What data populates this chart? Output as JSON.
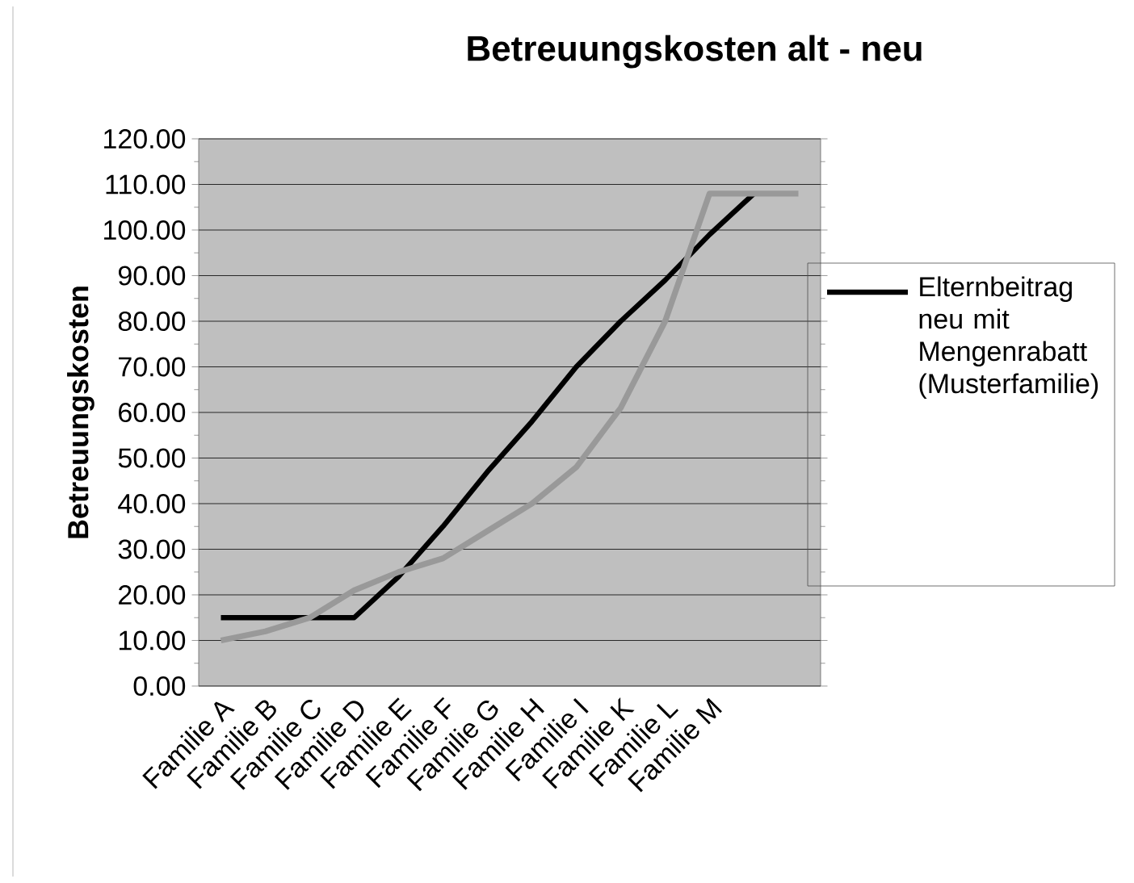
{
  "chart_data": {
    "type": "line",
    "title": "Betreuungskosten alt - neu",
    "ylabel": "Betreuungskosten",
    "categories": [
      "Familie A",
      "Familie B",
      "Familie C",
      "Familie D",
      "Familie E",
      "Familie F",
      "Familie G",
      "Familie H",
      "Familie I",
      "Familie K",
      "Familie L",
      "Familie M",
      null,
      null
    ],
    "series": [
      {
        "name": "Elternbeitrag neu mit Mengenrabatt (Musterfamilie)",
        "color": "#000000",
        "values": [
          15,
          15,
          15,
          15,
          24,
          35,
          47,
          58,
          70,
          80,
          89,
          99,
          108,
          null
        ]
      },
      {
        "color": "#999999",
        "values": [
          10,
          12,
          15,
          21,
          25,
          28,
          34,
          40,
          48,
          61,
          80,
          108,
          108,
          108
        ]
      }
    ],
    "ylim": [
      0,
      120
    ],
    "yticks": [
      {
        "value": 0,
        "label": "0.00"
      },
      {
        "value": 10,
        "label": "10.00"
      },
      {
        "value": 20,
        "label": "20.00"
      },
      {
        "value": 30,
        "label": "30.00"
      },
      {
        "value": 40,
        "label": "40.00"
      },
      {
        "value": 50,
        "label": "50.00"
      },
      {
        "value": 60,
        "label": "60.00"
      },
      {
        "value": 70,
        "label": "70.00"
      },
      {
        "value": 80,
        "label": "80.00"
      },
      {
        "value": 90,
        "label": "90.00"
      },
      {
        "value": 100,
        "label": "100.00"
      },
      {
        "value": 110,
        "label": "110.00"
      },
      {
        "value": 120,
        "label": "120.00"
      }
    ],
    "grid": "y",
    "legend": "right",
    "marker": "none",
    "line_style": "solid"
  }
}
